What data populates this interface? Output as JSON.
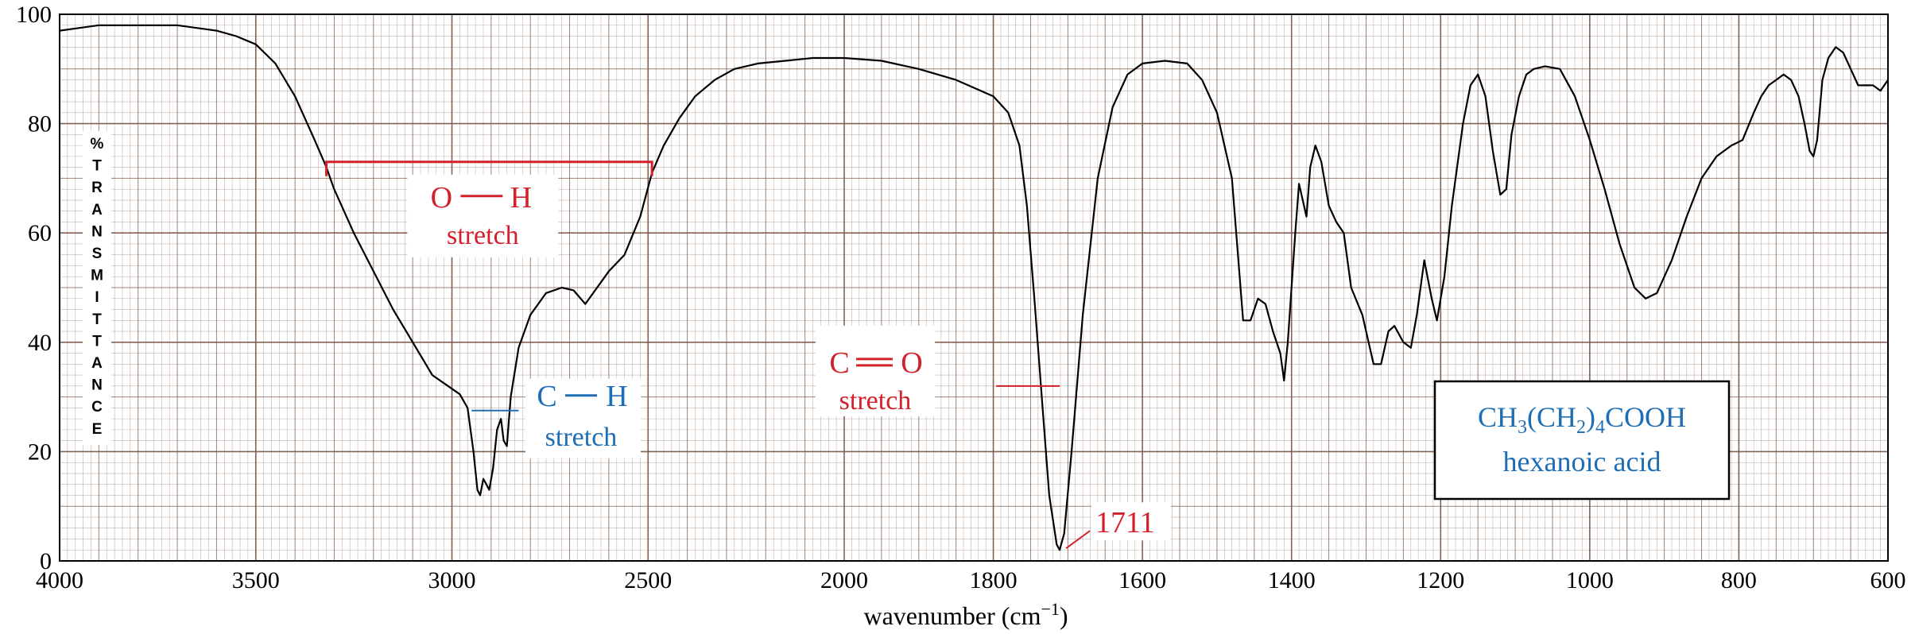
{
  "chart_data": {
    "type": "line",
    "title": "",
    "xlabel": "wavenumber (cm",
    "xlabel_sup": "−1",
    "xlabel_close": ")",
    "ylabel": "% TRANSMITTANCE",
    "ylabel_letters": [
      "%",
      "T",
      "R",
      "A",
      "N",
      "S",
      "M",
      "I",
      "T",
      "T",
      "A",
      "N",
      "C",
      "E"
    ],
    "xlim": [
      4000,
      600
    ],
    "ylim": [
      0,
      100
    ],
    "x_scale_change_at": 2000,
    "x_ticks": [
      4000,
      3500,
      3000,
      2500,
      2000,
      1800,
      1600,
      1400,
      1200,
      1000,
      800,
      600
    ],
    "y_ticks": [
      0,
      20,
      40,
      60,
      80,
      100
    ],
    "grid": true,
    "colors": {
      "spectrum": "#000000",
      "grid": "#7a5a4a",
      "red": "#d4202a",
      "blue": "#1e6eb5"
    },
    "annotations": {
      "oh": {
        "label_a": "O",
        "label_b": "H",
        "sub": "stretch",
        "x_from": 3320,
        "x_to": 2490,
        "y": 73
      },
      "ch": {
        "label_a": "C",
        "label_b": "H",
        "sub": "stretch",
        "x": 2920,
        "y": 27.5
      },
      "co": {
        "label_a": "C",
        "label_b": "O",
        "sub": "stretch",
        "x": 1711,
        "y": 32
      },
      "peak": {
        "label": "1711",
        "x": 1711,
        "y": 2
      }
    },
    "compound": {
      "formula_parts": [
        "CH",
        "3",
        "(CH",
        "2",
        ")",
        "4",
        "COOH"
      ],
      "name": "hexanoic acid"
    },
    "series": [
      {
        "values": [
          [
            4000,
            97
          ],
          [
            3950,
            97.5
          ],
          [
            3900,
            98
          ],
          [
            3850,
            98
          ],
          [
            3800,
            98
          ],
          [
            3750,
            98
          ],
          [
            3700,
            98
          ],
          [
            3650,
            97.5
          ],
          [
            3600,
            97
          ],
          [
            3550,
            96
          ],
          [
            3500,
            94.5
          ],
          [
            3450,
            91
          ],
          [
            3400,
            85
          ],
          [
            3350,
            77
          ],
          [
            3320,
            72
          ],
          [
            3300,
            68
          ],
          [
            3250,
            60
          ],
          [
            3200,
            53
          ],
          [
            3150,
            46
          ],
          [
            3100,
            40
          ],
          [
            3050,
            34
          ],
          [
            3000,
            31.5
          ],
          [
            2980,
            30.5
          ],
          [
            2960,
            28
          ],
          [
            2945,
            20
          ],
          [
            2935,
            13
          ],
          [
            2928,
            12
          ],
          [
            2920,
            15
          ],
          [
            2912,
            14
          ],
          [
            2905,
            13
          ],
          [
            2895,
            17
          ],
          [
            2885,
            24
          ],
          [
            2875,
            26
          ],
          [
            2868,
            22
          ],
          [
            2860,
            21
          ],
          [
            2850,
            30
          ],
          [
            2830,
            39
          ],
          [
            2800,
            45
          ],
          [
            2760,
            49
          ],
          [
            2720,
            50
          ],
          [
            2690,
            49.5
          ],
          [
            2660,
            47
          ],
          [
            2640,
            49
          ],
          [
            2600,
            53
          ],
          [
            2560,
            56
          ],
          [
            2520,
            63
          ],
          [
            2490,
            71
          ],
          [
            2460,
            76
          ],
          [
            2420,
            81
          ],
          [
            2380,
            85
          ],
          [
            2330,
            88
          ],
          [
            2280,
            90
          ],
          [
            2220,
            91
          ],
          [
            2150,
            91.5
          ],
          [
            2080,
            92
          ],
          [
            2020,
            92
          ],
          [
            2000,
            92
          ],
          [
            1950,
            91.5
          ],
          [
            1900,
            90
          ],
          [
            1850,
            88
          ],
          [
            1800,
            85
          ],
          [
            1780,
            82
          ],
          [
            1765,
            76
          ],
          [
            1755,
            65
          ],
          [
            1745,
            48
          ],
          [
            1735,
            30
          ],
          [
            1725,
            12
          ],
          [
            1715,
            3
          ],
          [
            1711,
            2
          ],
          [
            1705,
            5
          ],
          [
            1695,
            20
          ],
          [
            1680,
            45
          ],
          [
            1660,
            70
          ],
          [
            1640,
            83
          ],
          [
            1620,
            89
          ],
          [
            1600,
            91
          ],
          [
            1570,
            91.5
          ],
          [
            1540,
            91
          ],
          [
            1520,
            88
          ],
          [
            1500,
            82
          ],
          [
            1480,
            70
          ],
          [
            1465,
            44
          ],
          [
            1455,
            44
          ],
          [
            1445,
            48
          ],
          [
            1435,
            47
          ],
          [
            1425,
            42
          ],
          [
            1415,
            38
          ],
          [
            1410,
            33
          ],
          [
            1405,
            40
          ],
          [
            1395,
            60
          ],
          [
            1390,
            69
          ],
          [
            1385,
            66
          ],
          [
            1380,
            63
          ],
          [
            1375,
            72
          ],
          [
            1368,
            76
          ],
          [
            1360,
            73
          ],
          [
            1350,
            65
          ],
          [
            1340,
            62
          ],
          [
            1330,
            60
          ],
          [
            1320,
            50
          ],
          [
            1305,
            45
          ],
          [
            1290,
            36
          ],
          [
            1280,
            36
          ],
          [
            1270,
            42
          ],
          [
            1262,
            43
          ],
          [
            1250,
            40
          ],
          [
            1240,
            39
          ],
          [
            1232,
            45
          ],
          [
            1222,
            55
          ],
          [
            1212,
            48
          ],
          [
            1205,
            44
          ],
          [
            1195,
            52
          ],
          [
            1185,
            65
          ],
          [
            1170,
            80
          ],
          [
            1160,
            87
          ],
          [
            1150,
            89
          ],
          [
            1140,
            85
          ],
          [
            1130,
            75
          ],
          [
            1120,
            67
          ],
          [
            1112,
            68
          ],
          [
            1105,
            78
          ],
          [
            1095,
            85
          ],
          [
            1085,
            89
          ],
          [
            1075,
            90
          ],
          [
            1060,
            90.5
          ],
          [
            1040,
            90
          ],
          [
            1020,
            85
          ],
          [
            1000,
            77
          ],
          [
            980,
            68
          ],
          [
            960,
            58
          ],
          [
            940,
            50
          ],
          [
            925,
            48
          ],
          [
            910,
            49
          ],
          [
            890,
            55
          ],
          [
            870,
            63
          ],
          [
            850,
            70
          ],
          [
            830,
            74
          ],
          [
            810,
            76
          ],
          [
            795,
            77
          ],
          [
            780,
            82
          ],
          [
            770,
            85
          ],
          [
            760,
            87
          ],
          [
            750,
            88
          ],
          [
            740,
            89
          ],
          [
            730,
            88
          ],
          [
            720,
            85
          ],
          [
            712,
            80
          ],
          [
            705,
            75
          ],
          [
            700,
            74
          ],
          [
            695,
            77
          ],
          [
            688,
            88
          ],
          [
            680,
            92
          ],
          [
            670,
            94
          ],
          [
            660,
            93
          ],
          [
            650,
            90
          ],
          [
            640,
            87
          ],
          [
            630,
            87
          ],
          [
            620,
            87
          ],
          [
            610,
            86
          ],
          [
            600,
            88
          ]
        ]
      }
    ]
  }
}
